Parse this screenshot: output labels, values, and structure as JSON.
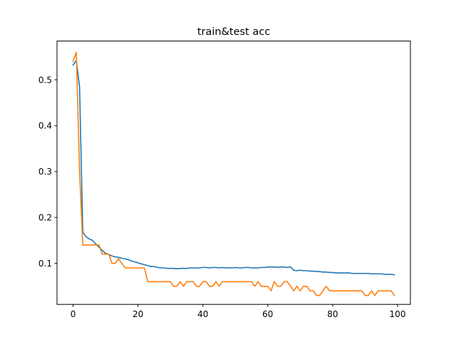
{
  "chart_data": {
    "type": "line",
    "title": "train&test acc",
    "xlabel": "",
    "ylabel": "",
    "xlim": [
      -4.95,
      103.95
    ],
    "ylim": [
      0.0105,
      0.5845
    ],
    "grid": false,
    "legend": "none",
    "x_ticks": [
      0,
      20,
      40,
      60,
      80,
      100
    ],
    "x_tick_labels": [
      "0",
      "20",
      "40",
      "60",
      "80",
      "100"
    ],
    "y_ticks": [
      0.1,
      0.2,
      0.3,
      0.4,
      0.5
    ],
    "y_tick_labels": [
      "0.1",
      "0.2",
      "0.3",
      "0.4",
      "0.5"
    ],
    "series": [
      {
        "color": "#1f77b4",
        "x": [
          0,
          1,
          2,
          3,
          4,
          5,
          6,
          7,
          8,
          9,
          10,
          11,
          12,
          13,
          14,
          15,
          16,
          17,
          18,
          19,
          20,
          21,
          22,
          23,
          24,
          25,
          26,
          27,
          28,
          29,
          30,
          31,
          32,
          33,
          34,
          35,
          36,
          37,
          38,
          39,
          40,
          41,
          42,
          43,
          44,
          45,
          46,
          47,
          48,
          49,
          50,
          51,
          52,
          53,
          54,
          55,
          56,
          57,
          58,
          59,
          60,
          61,
          62,
          63,
          64,
          65,
          66,
          67,
          68,
          69,
          70,
          71,
          72,
          73,
          74,
          75,
          76,
          77,
          78,
          79,
          80,
          81,
          82,
          83,
          84,
          85,
          86,
          87,
          88,
          89,
          90,
          91,
          92,
          93,
          94,
          95,
          96,
          97,
          98,
          99
        ],
        "values": [
          0.532,
          0.542,
          0.485,
          0.168,
          0.158,
          0.153,
          0.15,
          0.142,
          0.135,
          0.128,
          0.122,
          0.119,
          0.116,
          0.114,
          0.113,
          0.111,
          0.11,
          0.108,
          0.105,
          0.103,
          0.101,
          0.099,
          0.097,
          0.095,
          0.093,
          0.093,
          0.091,
          0.09,
          0.09,
          0.089,
          0.089,
          0.089,
          0.088,
          0.089,
          0.089,
          0.089,
          0.09,
          0.09,
          0.09,
          0.09,
          0.091,
          0.091,
          0.09,
          0.091,
          0.091,
          0.09,
          0.091,
          0.09,
          0.09,
          0.09,
          0.091,
          0.09,
          0.09,
          0.091,
          0.091,
          0.09,
          0.09,
          0.09,
          0.091,
          0.091,
          0.092,
          0.092,
          0.092,
          0.091,
          0.092,
          0.092,
          0.091,
          0.092,
          0.085,
          0.084,
          0.085,
          0.084,
          0.084,
          0.083,
          0.083,
          0.082,
          0.082,
          0.081,
          0.081,
          0.08,
          0.08,
          0.079,
          0.079,
          0.079,
          0.079,
          0.079,
          0.078,
          0.078,
          0.078,
          0.078,
          0.078,
          0.078,
          0.077,
          0.077,
          0.077,
          0.077,
          0.076,
          0.076,
          0.076,
          0.075
        ]
      },
      {
        "color": "#ff7f0e",
        "x": [
          0,
          1,
          2,
          3,
          4,
          5,
          6,
          7,
          8,
          9,
          10,
          11,
          12,
          13,
          14,
          15,
          16,
          17,
          18,
          19,
          20,
          21,
          22,
          23,
          24,
          25,
          26,
          27,
          28,
          29,
          30,
          31,
          32,
          33,
          34,
          35,
          36,
          37,
          38,
          39,
          40,
          41,
          42,
          43,
          44,
          45,
          46,
          47,
          48,
          49,
          50,
          51,
          52,
          53,
          54,
          55,
          56,
          57,
          58,
          59,
          60,
          61,
          62,
          63,
          64,
          65,
          66,
          67,
          68,
          69,
          70,
          71,
          72,
          73,
          74,
          75,
          76,
          77,
          78,
          79,
          80,
          81,
          82,
          83,
          84,
          85,
          86,
          87,
          88,
          89,
          90,
          91,
          92,
          93,
          94,
          95,
          96,
          97,
          98,
          99
        ],
        "values": [
          0.54,
          0.56,
          0.3,
          0.14,
          0.14,
          0.14,
          0.14,
          0.14,
          0.14,
          0.12,
          0.12,
          0.12,
          0.1,
          0.1,
          0.11,
          0.1,
          0.09,
          0.09,
          0.09,
          0.09,
          0.09,
          0.09,
          0.09,
          0.06,
          0.06,
          0.06,
          0.06,
          0.06,
          0.06,
          0.06,
          0.06,
          0.05,
          0.05,
          0.06,
          0.05,
          0.06,
          0.06,
          0.06,
          0.05,
          0.05,
          0.06,
          0.06,
          0.05,
          0.05,
          0.06,
          0.05,
          0.06,
          0.06,
          0.06,
          0.06,
          0.06,
          0.06,
          0.06,
          0.06,
          0.06,
          0.06,
          0.05,
          0.06,
          0.05,
          0.05,
          0.05,
          0.04,
          0.06,
          0.05,
          0.05,
          0.06,
          0.06,
          0.05,
          0.04,
          0.05,
          0.04,
          0.05,
          0.05,
          0.04,
          0.04,
          0.03,
          0.03,
          0.04,
          0.05,
          0.04,
          0.04,
          0.04,
          0.04,
          0.04,
          0.04,
          0.04,
          0.04,
          0.04,
          0.04,
          0.04,
          0.03,
          0.03,
          0.04,
          0.03,
          0.04,
          0.04,
          0.04,
          0.04,
          0.04,
          0.03
        ]
      }
    ]
  }
}
